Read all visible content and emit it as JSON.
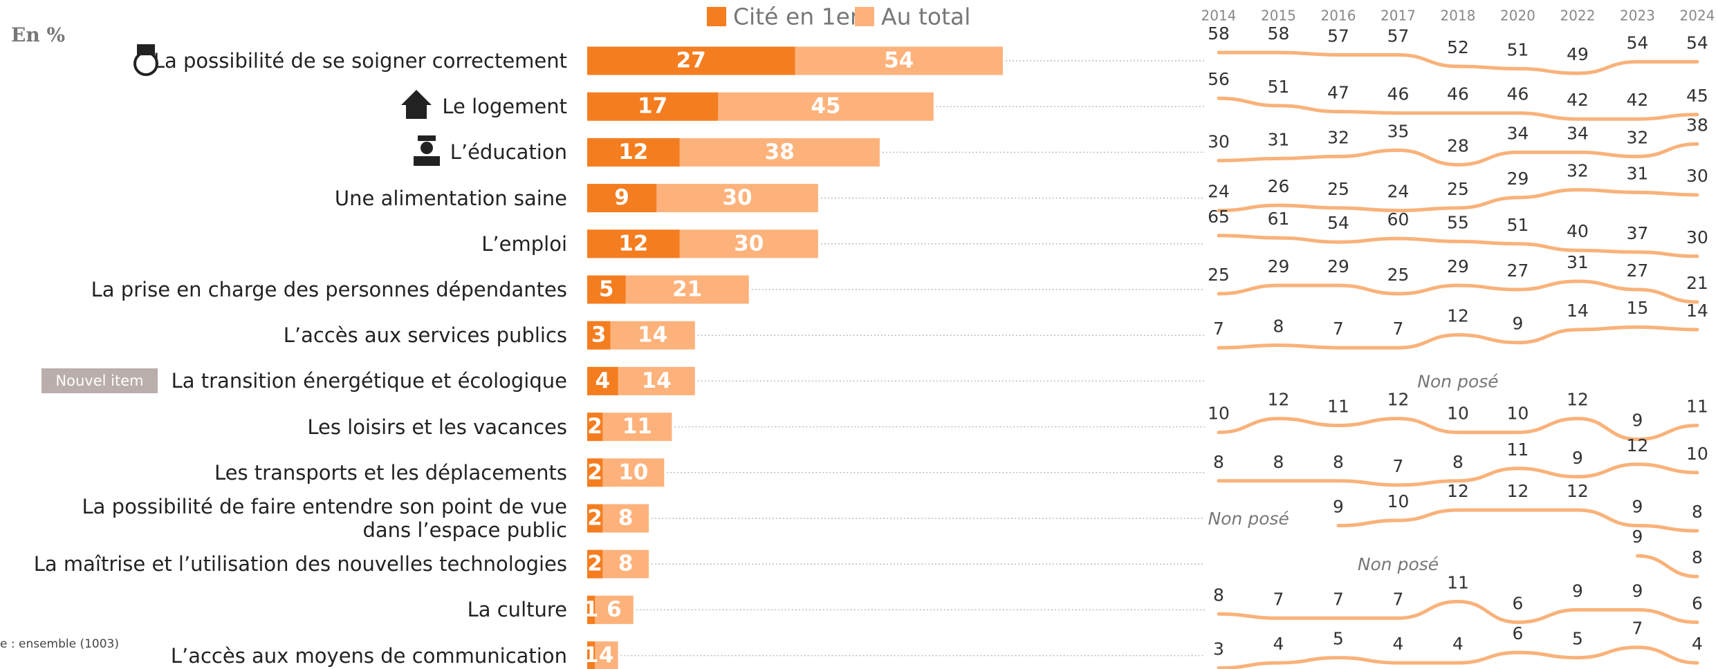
{
  "unit_label": "En %",
  "footnote": "e : ensemble (1003)",
  "chart_data": [
    {
      "type": "bar",
      "orientation": "horizontal",
      "categories": [
        "La possibilité de se soigner correctement",
        "Le logement",
        "L’éducation",
        "Une alimentation saine",
        "L’emploi",
        "La prise en charge des personnes dépendantes",
        "L’accès aux services publics",
        "La transition énergétique et écologique",
        "Les loisirs et les vacances",
        "Les transports et les déplacements",
        "La possibilité de faire entendre son point de vue\ndans l’espace public",
        "La maîtrise et l’utilisation des nouvelles technologies",
        "La culture",
        "L’accès aux moyens de communication"
      ],
      "series": [
        {
          "name": "Cité en 1er",
          "color": "#f47d20",
          "values": [
            27,
            17,
            12,
            9,
            12,
            5,
            3,
            4,
            2,
            2,
            2,
            2,
            1,
            1
          ]
        },
        {
          "name": "Au total",
          "color": "#fdb27b",
          "values": [
            54,
            45,
            38,
            30,
            30,
            21,
            14,
            14,
            11,
            10,
            8,
            8,
            6,
            4
          ]
        }
      ],
      "xlim": [
        0,
        54
      ],
      "annotations": [
        {
          "text": "Nouvel item",
          "category": "La transition énergétique et écologique"
        }
      ]
    },
    {
      "type": "line",
      "color": "#f9b27a",
      "x": [
        2014,
        2015,
        2016,
        2017,
        2018,
        2020,
        2022,
        2023,
        2024
      ],
      "series": [
        {
          "values": [
            58,
            58,
            57,
            57,
            52,
            51,
            49,
            54,
            54
          ]
        },
        {
          "values": [
            56,
            51,
            47,
            46,
            46,
            46,
            42,
            42,
            45
          ]
        },
        {
          "values": [
            30,
            31,
            32,
            35,
            28,
            34,
            34,
            32,
            38
          ]
        },
        {
          "values": [
            24,
            26,
            25,
            24,
            25,
            29,
            32,
            31,
            30
          ]
        },
        {
          "values": [
            65,
            61,
            54,
            60,
            55,
            51,
            40,
            37,
            30
          ]
        },
        {
          "values": [
            25,
            29,
            29,
            25,
            29,
            27,
            31,
            27,
            21
          ]
        },
        {
          "values": [
            7,
            8,
            7,
            7,
            12,
            9,
            14,
            15,
            14
          ]
        },
        {
          "values": [
            null,
            null,
            null,
            null,
            null,
            null,
            null,
            null,
            null
          ],
          "note": "Non posé"
        },
        {
          "values": [
            10,
            12,
            11,
            12,
            10,
            10,
            12,
            9,
            11
          ]
        },
        {
          "values": [
            8,
            8,
            8,
            7,
            8,
            11,
            9,
            12,
            10
          ]
        },
        {
          "values": [
            null,
            null,
            9,
            10,
            12,
            12,
            12,
            9,
            8
          ],
          "note": "Non posé"
        },
        {
          "values": [
            null,
            null,
            null,
            null,
            null,
            null,
            null,
            9,
            8
          ],
          "note": "Non posé"
        },
        {
          "values": [
            8,
            7,
            7,
            7,
            11,
            6,
            9,
            9,
            6
          ]
        },
        {
          "values": [
            3,
            4,
            5,
            4,
            4,
            6,
            5,
            7,
            4
          ]
        }
      ]
    }
  ]
}
